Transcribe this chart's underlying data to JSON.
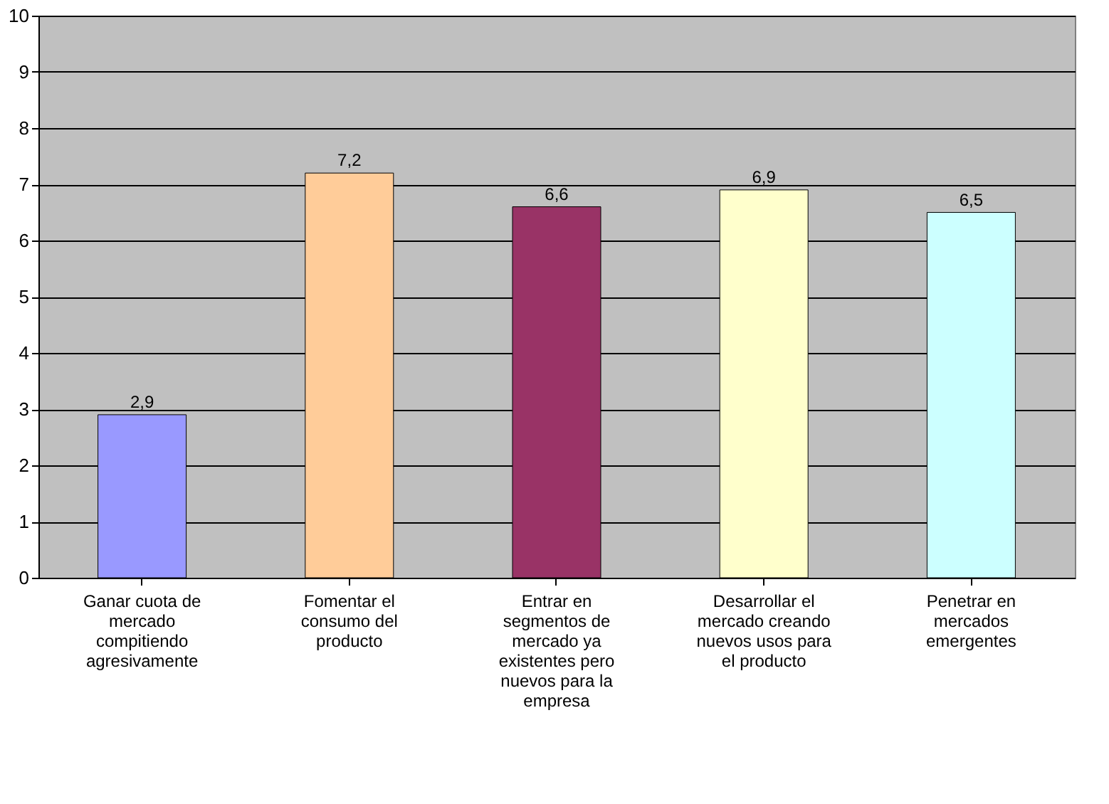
{
  "chart_data": {
    "type": "bar",
    "categories": [
      "Ganar cuota de mercado compitiendo agresivamente",
      "Fomentar el consumo del producto",
      "Entrar en segmentos de mercado ya existentes pero nuevos para la empresa",
      "Desarrollar el mercado creando nuevos usos para el producto",
      "Penetrar en mercados emergentes"
    ],
    "values": [
      2.9,
      7.2,
      6.6,
      6.9,
      6.5
    ],
    "colors": [
      "#9999ff",
      "#ffcc99",
      "#993366",
      "#ffffcc",
      "#ccffff"
    ],
    "value_labels": [
      "2,9",
      "7,2",
      "6,6",
      "6,9",
      "6,5"
    ],
    "ylim": [
      0,
      10
    ],
    "yticks": [
      0,
      1,
      2,
      3,
      4,
      5,
      6,
      7,
      8,
      9,
      10
    ],
    "grid": "y"
  }
}
